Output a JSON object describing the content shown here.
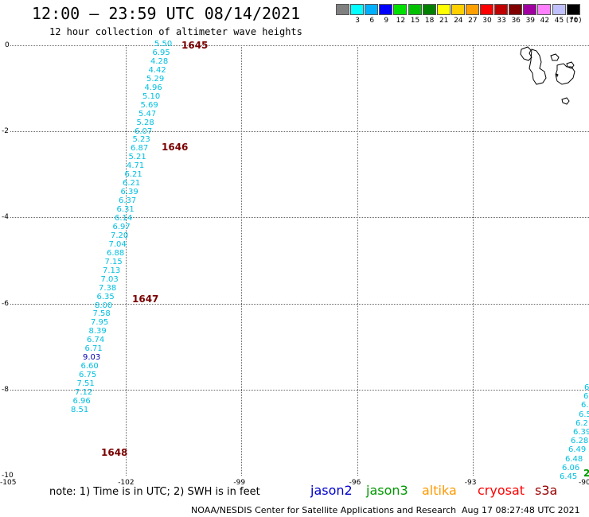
{
  "title": "12:00 – 23:59 UTC 08/14/2021",
  "subtitle": "12 hour collection of altimeter wave heights",
  "legend": {
    "unit": "(ft)",
    "items": [
      {
        "label": "",
        "color": "#808080"
      },
      {
        "label": "3",
        "color": "#00ffff"
      },
      {
        "label": "6",
        "color": "#00b0ff"
      },
      {
        "label": "9",
        "color": "#0000ff"
      },
      {
        "label": "12",
        "color": "#00e000"
      },
      {
        "label": "15",
        "color": "#00c000"
      },
      {
        "label": "18",
        "color": "#008000"
      },
      {
        "label": "21",
        "color": "#ffff00"
      },
      {
        "label": "24",
        "color": "#ffd000"
      },
      {
        "label": "27",
        "color": "#ffa000"
      },
      {
        "label": "30",
        "color": "#ff0000"
      },
      {
        "label": "33",
        "color": "#c00000"
      },
      {
        "label": "36",
        "color": "#800000"
      },
      {
        "label": "39",
        "color": "#a000a0"
      },
      {
        "label": "42",
        "color": "#ff80ff"
      },
      {
        "label": "45",
        "color": "#c0c0ff"
      },
      {
        "label": "70",
        "color": "#000000"
      }
    ]
  },
  "axes": {
    "y_ticks": [
      "0",
      "-2",
      "-4",
      "-6",
      "-8",
      "-10"
    ],
    "x_ticks": [
      "-105",
      "-102",
      "-99",
      "-96",
      "-93",
      "-90"
    ]
  },
  "track_main": {
    "times": [
      "1645",
      "1646",
      "1647",
      "1648"
    ],
    "heights": [
      "5.50",
      "6.95",
      "4.28",
      "4.42",
      "5.29",
      "4.96",
      "5.10",
      "5.69",
      "5.47",
      "5.28",
      "6.07",
      "5.23",
      "6.87",
      "5.21",
      "4.71",
      "6.21",
      "6.21",
      "6.39",
      "6.37",
      "6.31",
      "6.14",
      "6.97",
      "7.20",
      "7.04",
      "6.88",
      "7.15",
      "7.13",
      "7.03",
      "7.38",
      "6.35",
      "8.00",
      "7.58",
      "7.95",
      "8.39",
      "6.74",
      "6.71",
      "9.03",
      "6.60",
      "6.75",
      "7.51",
      "7.12",
      "6.96",
      "8.51"
    ]
  },
  "track_edge": {
    "heights": [
      "6",
      "6",
      "6.",
      "6.5",
      "6.2",
      "6.39",
      "6.28",
      "6.49",
      "6.48",
      "6.06",
      "6.45"
    ],
    "corner_label": "2"
  },
  "note": "note: 1) Time is in UTC; 2) SWH is in feet",
  "satellites": [
    {
      "name": "jason2",
      "color": "#0000cc"
    },
    {
      "name": "jason3",
      "color": "#009900"
    },
    {
      "name": "altika",
      "color": "#ff9900"
    },
    {
      "name": "cryosat",
      "color": "#ff0000"
    },
    {
      "name": "s3a",
      "color": "#990000"
    }
  ],
  "credit": "NOAA/NESDIS Center for Satellite Applications and Research",
  "timestamp": "Aug 17 08:27:48 UTC 2021"
}
